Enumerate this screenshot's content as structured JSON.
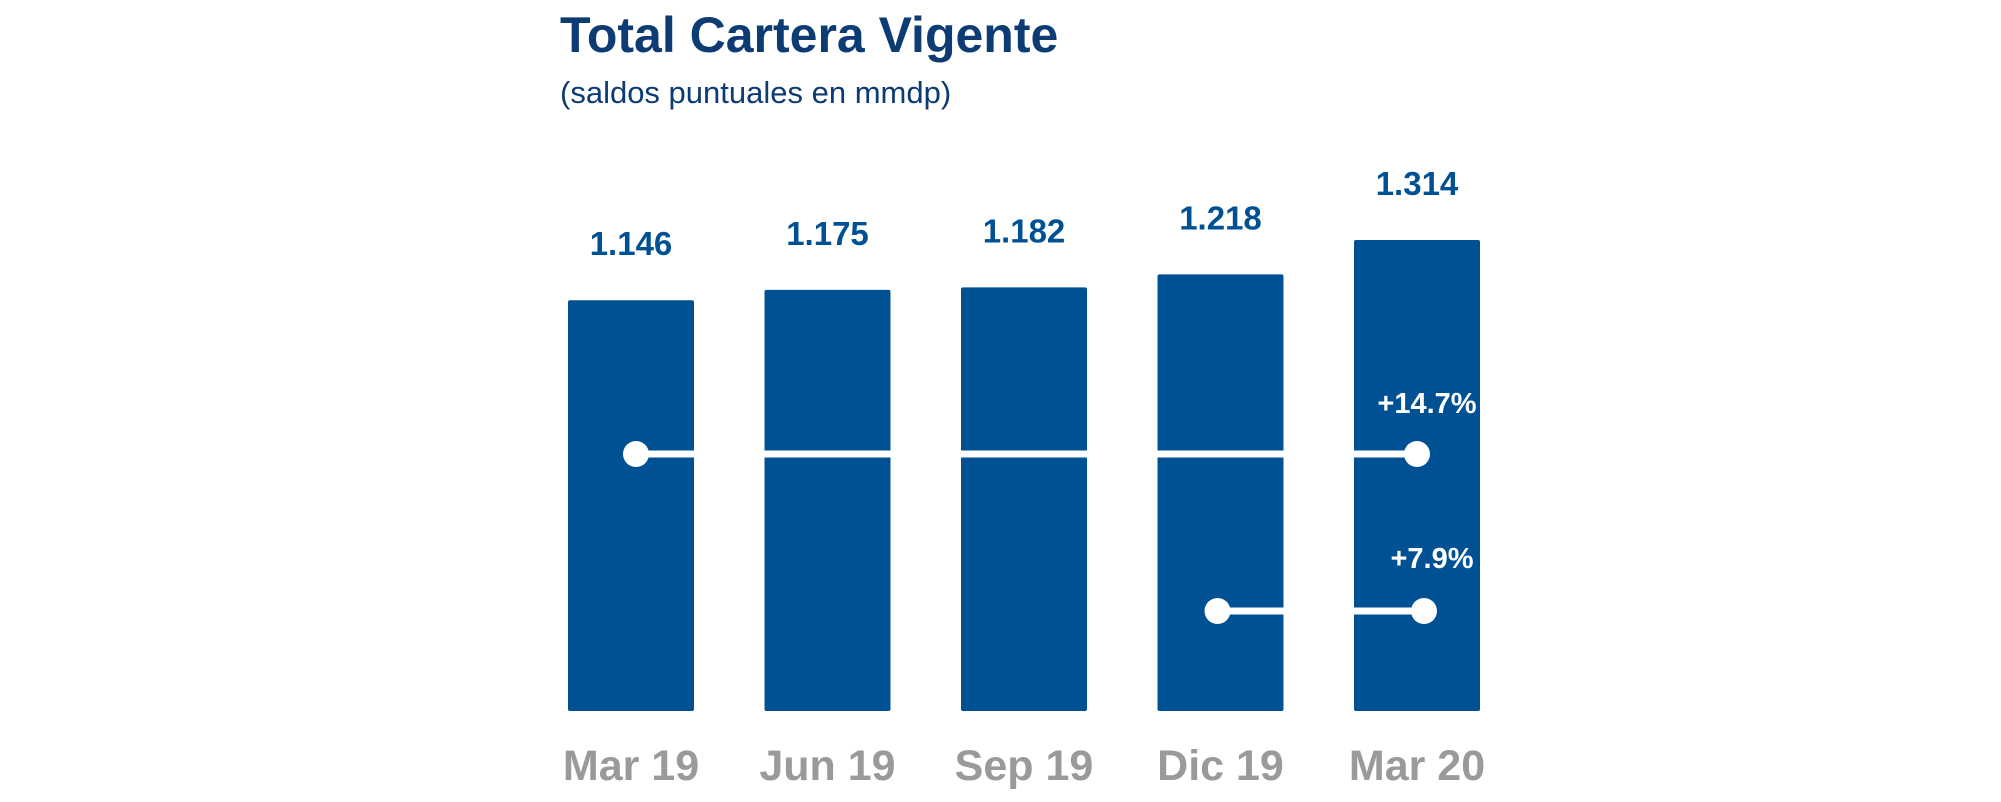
{
  "chart_data": {
    "type": "bar",
    "title": "Total Cartera Vigente",
    "subtitle": "(saldos puntuales en mmdp)",
    "categories": [
      "Mar 19",
      "Jun 19",
      "Sep 19",
      "Dic 19",
      "Mar 20"
    ],
    "values": [
      1146,
      1175,
      1182,
      1218,
      1314
    ],
    "value_labels": [
      "1.146",
      "1.175",
      "1.182",
      "1.218",
      "1.314"
    ],
    "grid": false,
    "legend": "none",
    "annotations": [
      {
        "label": "+14.7%",
        "from_category": "Mar 19",
        "to_category": "Mar 20"
      },
      {
        "label": "+7.9%",
        "from_category": "Dic 19",
        "to_category": "Mar 20"
      }
    ],
    "colors": {
      "bar": "#005194",
      "title": "#0d3b73",
      "value_label": "#005194",
      "tick_label": "#9a9a9a",
      "annotation": "#ffffff"
    }
  }
}
